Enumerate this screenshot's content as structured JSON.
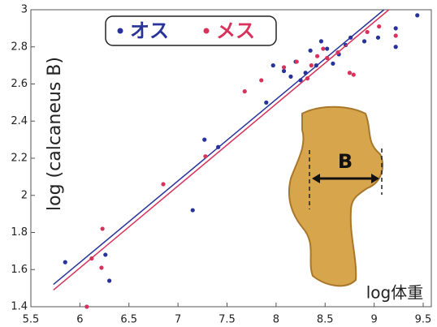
{
  "chart_data": {
    "type": "scatter",
    "y_label": "log (calcaneus B)",
    "x_label": "log体重",
    "inset_label": "B",
    "xlim": [
      5.5,
      9.5
    ],
    "ylim": [
      1.4,
      3
    ],
    "xticks": [
      5.5,
      6,
      6.5,
      7,
      7.5,
      8,
      8.5,
      9,
      9.5
    ],
    "yticks": [
      1.4,
      1.6,
      1.8,
      2,
      2.2,
      2.4,
      2.6,
      2.8,
      3
    ],
    "series": [
      {
        "name": "オス",
        "color": "#27339a",
        "x": [
          5.85,
          6.26,
          6.3,
          7.15,
          7.27,
          7.41,
          7.9,
          7.97,
          8.08,
          8.15,
          8.2,
          8.25,
          8.3,
          8.35,
          8.41,
          8.46,
          8.52,
          8.58,
          8.64,
          8.71,
          8.76,
          8.9,
          9.04,
          9.22,
          9.22,
          9.44
        ],
        "values": [
          1.64,
          1.68,
          1.54,
          1.92,
          2.3,
          2.26,
          2.5,
          2.7,
          2.67,
          2.64,
          2.72,
          2.62,
          2.66,
          2.78,
          2.7,
          2.83,
          2.79,
          2.71,
          2.76,
          2.81,
          2.85,
          2.83,
          2.85,
          2.9,
          2.8,
          2.97
        ],
        "fit": {
          "x": [
            5.73,
            9.1
          ],
          "values": [
            1.52,
            3
          ]
        }
      },
      {
        "name": "メス",
        "color": "#d8325a",
        "x": [
          6.07,
          6.23,
          6.22,
          6.12,
          6.85,
          7.28,
          7.68,
          7.85,
          8.08,
          8.21,
          8.32,
          8.36,
          8.42,
          8.48,
          8.52,
          8.63,
          8.75,
          8.79,
          8.93,
          9.05,
          9.22
        ],
        "values": [
          1.4,
          1.82,
          1.61,
          1.66,
          2.06,
          2.21,
          2.56,
          2.62,
          2.69,
          2.72,
          2.63,
          2.7,
          2.75,
          2.79,
          2.74,
          2.77,
          2.66,
          2.65,
          2.88,
          2.91,
          2.86
        ],
        "fit": {
          "x": [
            5.73,
            9.15
          ],
          "values": [
            1.49,
            3
          ]
        }
      }
    ]
  }
}
